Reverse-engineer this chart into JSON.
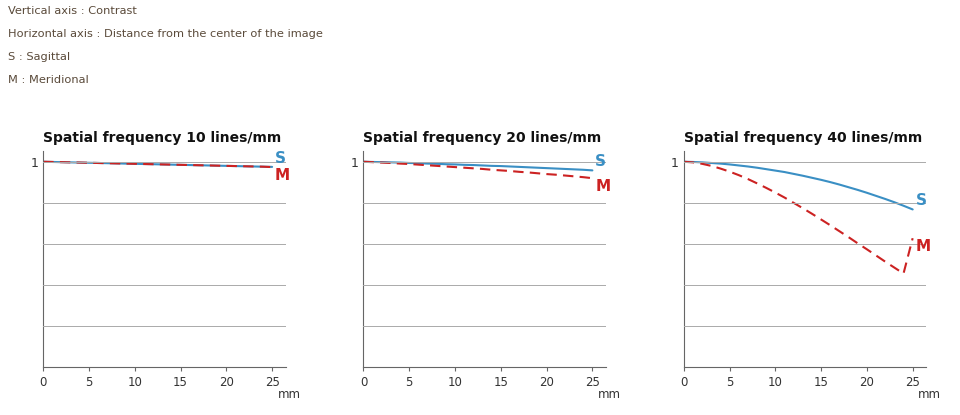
{
  "info_lines": [
    "Vertical axis : Contrast",
    "Horizontal axis : Distance from the center of the image",
    "S : Sagittal",
    "M : Meridional"
  ],
  "info_color": "#5a4a3a",
  "subplots": [
    {
      "title": "Spatial frequency 10 lines/mm",
      "sagittal": [
        1.0,
        0.999,
        0.998,
        0.997,
        0.996,
        0.995,
        0.994,
        0.993,
        0.992,
        0.991,
        0.99,
        0.989,
        0.988,
        0.987,
        0.986,
        0.985,
        0.984,
        0.983,
        0.982,
        0.981,
        0.98,
        0.979,
        0.978,
        0.977,
        0.976,
        0.975
      ],
      "meridional": [
        1.0,
        0.999,
        0.998,
        0.997,
        0.996,
        0.995,
        0.994,
        0.993,
        0.992,
        0.991,
        0.99,
        0.989,
        0.988,
        0.987,
        0.986,
        0.985,
        0.984,
        0.983,
        0.982,
        0.981,
        0.98,
        0.979,
        0.978,
        0.977,
        0.976,
        0.974
      ]
    },
    {
      "title": "Spatial frequency 20 lines/mm",
      "sagittal": [
        1.0,
        0.999,
        0.998,
        0.997,
        0.996,
        0.994,
        0.993,
        0.991,
        0.99,
        0.988,
        0.987,
        0.985,
        0.984,
        0.982,
        0.98,
        0.979,
        0.977,
        0.975,
        0.973,
        0.971,
        0.969,
        0.967,
        0.965,
        0.963,
        0.961,
        0.958
      ],
      "meridional": [
        1.0,
        0.998,
        0.996,
        0.994,
        0.991,
        0.989,
        0.986,
        0.983,
        0.98,
        0.977,
        0.974,
        0.971,
        0.968,
        0.965,
        0.961,
        0.958,
        0.955,
        0.951,
        0.948,
        0.944,
        0.94,
        0.937,
        0.933,
        0.929,
        0.925,
        0.92
      ]
    },
    {
      "title": "Spatial frequency 40 lines/mm",
      "sagittal": [
        1.0,
        0.999,
        0.997,
        0.994,
        0.991,
        0.987,
        0.982,
        0.977,
        0.971,
        0.964,
        0.957,
        0.95,
        0.941,
        0.932,
        0.922,
        0.912,
        0.901,
        0.889,
        0.876,
        0.863,
        0.849,
        0.834,
        0.819,
        0.803,
        0.786,
        0.768
      ],
      "meridional": [
        1.0,
        0.997,
        0.99,
        0.98,
        0.967,
        0.952,
        0.935,
        0.916,
        0.895,
        0.873,
        0.85,
        0.826,
        0.8,
        0.774,
        0.747,
        0.719,
        0.691,
        0.662,
        0.633,
        0.603,
        0.574,
        0.544,
        0.514,
        0.485,
        0.456,
        0.648
      ]
    }
  ],
  "x_values": [
    0,
    1,
    2,
    3,
    4,
    5,
    6,
    7,
    8,
    9,
    10,
    11,
    12,
    13,
    14,
    15,
    16,
    17,
    18,
    19,
    20,
    21,
    22,
    23,
    24,
    25
  ],
  "sagittal_color": "#3a8fc4",
  "meridional_color": "#cc2222",
  "label_color": "#333333",
  "grid_color": "#aaaaaa",
  "ylim": [
    0,
    1.05
  ],
  "xlim": [
    0,
    25
  ],
  "yticks": [
    0.0,
    0.2,
    0.4,
    0.6,
    0.8,
    1.0
  ],
  "xticks": [
    0,
    5,
    10,
    15,
    20,
    25
  ],
  "xlabel": "mm"
}
